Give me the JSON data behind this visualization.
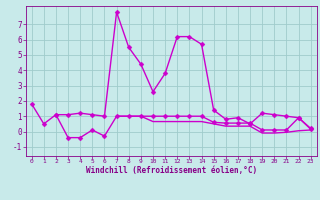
{
  "xlabel": "Windchill (Refroidissement éolien,°C)",
  "background_color": "#c8eaea",
  "grid_color": "#a0cccc",
  "xlim": [
    -0.5,
    23.5
  ],
  "ylim": [
    -1.6,
    8.2
  ],
  "yticks": [
    -1,
    0,
    1,
    2,
    3,
    4,
    5,
    6,
    7
  ],
  "xticks": [
    0,
    1,
    2,
    3,
    4,
    5,
    6,
    7,
    8,
    9,
    10,
    11,
    12,
    13,
    14,
    15,
    16,
    17,
    18,
    19,
    20,
    21,
    22,
    23
  ],
  "series": [
    {
      "x": [
        0,
        1,
        2,
        3,
        4,
        5,
        6,
        7,
        8,
        9,
        10,
        11,
        12,
        13,
        14,
        15,
        16,
        17,
        18,
        19,
        20,
        21,
        22,
        23
      ],
      "y": [
        1.8,
        0.5,
        1.1,
        1.1,
        1.2,
        1.1,
        1.0,
        7.8,
        5.5,
        4.4,
        2.6,
        3.8,
        6.2,
        6.2,
        5.7,
        1.4,
        0.8,
        0.9,
        0.5,
        1.2,
        1.1,
        1.0,
        0.9,
        0.2
      ],
      "color": "#cc00cc",
      "linewidth": 1.0,
      "marker": "D",
      "markersize": 2.5
    },
    {
      "x": [
        2,
        3,
        4,
        5,
        6,
        7,
        8,
        9,
        10,
        11,
        12,
        13,
        14,
        15,
        16,
        17,
        18,
        19,
        20,
        21,
        22,
        23
      ],
      "y": [
        1.1,
        -0.4,
        -0.4,
        0.1,
        -0.3,
        1.0,
        1.0,
        1.0,
        1.0,
        1.0,
        1.0,
        1.0,
        1.0,
        0.6,
        0.55,
        0.55,
        0.55,
        0.1,
        0.1,
        0.1,
        0.9,
        0.15
      ],
      "color": "#cc00cc",
      "linewidth": 1.0,
      "marker": "D",
      "markersize": 2.5
    },
    {
      "x": [
        7,
        8,
        9,
        10,
        11,
        12,
        13,
        14,
        15,
        16,
        17,
        18,
        19,
        20,
        21,
        22,
        23
      ],
      "y": [
        1.0,
        1.0,
        1.0,
        0.65,
        0.65,
        0.65,
        0.65,
        0.65,
        0.5,
        0.35,
        0.35,
        0.35,
        -0.1,
        -0.1,
        -0.05,
        0.05,
        0.1
      ],
      "color": "#cc00cc",
      "linewidth": 1.0,
      "marker": null,
      "markersize": 0
    }
  ]
}
